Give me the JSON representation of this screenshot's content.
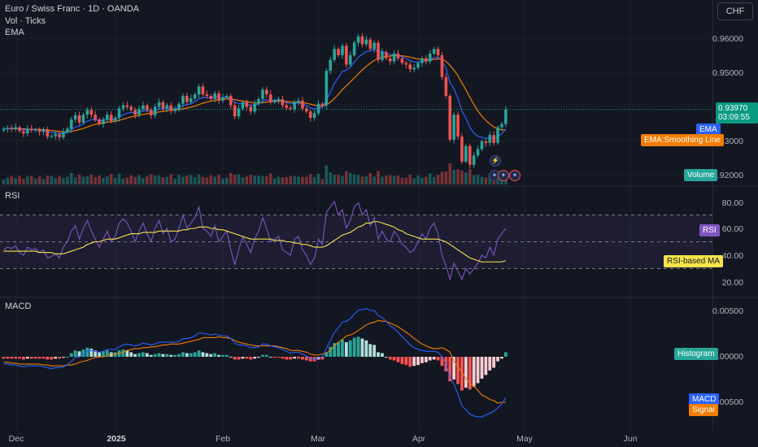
{
  "header": {
    "symbol_title": "Euro / Swiss Franc · 1D · OANDA",
    "volume_label": "Vol · Ticks",
    "ema_label": "EMA",
    "currency_button": "CHF"
  },
  "price_tag": {
    "price": "0.93970",
    "countdown": "03:09:55"
  },
  "legend_tags": {
    "ema": "EMA",
    "ema_smoothing": "EMA:Smoothing Line",
    "volume": "Volume",
    "rsi": "RSI",
    "rsi_ma": "RSI-based MA",
    "histogram": "Histogram",
    "macd": "MACD",
    "signal": "Signal"
  },
  "panes": {
    "rsi_title": "RSI",
    "macd_title": "MACD"
  },
  "colors": {
    "background": "#131722",
    "up": "#26a69a",
    "down": "#ef5350",
    "ema": "#2962ff",
    "ema_smoothing": "#f57c00",
    "rsi_line": "#7e57c2",
    "rsi_ma": "#f7e34a",
    "macd": "#2962ff",
    "signal": "#f57c00",
    "hist_up_strong": "#26a69a",
    "hist_up_weak": "#b2dfdb",
    "hist_down_strong": "#ff5252",
    "hist_down_weak": "#ffcdd2"
  },
  "chart_data": [
    {
      "type": "candlestick",
      "title": "Euro / Swiss Franc · 1D · OANDA",
      "y_ticks": [
        "0.96000",
        "0.95000",
        "0.93000",
        "0.92000"
      ],
      "ylim": [
        0.9165,
        0.9715
      ],
      "x_ticks": [
        "Dec",
        "2025",
        "Feb",
        "Mar",
        "Apr",
        "May",
        "Jun"
      ],
      "last_price": 0.9397,
      "closes": [
        0.9335,
        0.9338,
        0.9335,
        0.934,
        0.9328,
        0.932,
        0.9335,
        0.933,
        0.9332,
        0.9325,
        0.933,
        0.931,
        0.9312,
        0.9318,
        0.9308,
        0.9325,
        0.9335,
        0.9365,
        0.9378,
        0.9355,
        0.938,
        0.9395,
        0.938,
        0.9365,
        0.935,
        0.9365,
        0.938,
        0.936,
        0.937,
        0.94,
        0.941,
        0.9405,
        0.9395,
        0.938,
        0.9398,
        0.941,
        0.9395,
        0.9378,
        0.9405,
        0.942,
        0.94,
        0.941,
        0.9392,
        0.9395,
        0.9415,
        0.944,
        0.942,
        0.9432,
        0.9445,
        0.947,
        0.9445,
        0.944,
        0.943,
        0.9448,
        0.9425,
        0.9435,
        0.944,
        0.941,
        0.9375,
        0.94,
        0.942,
        0.9405,
        0.939,
        0.9415,
        0.943,
        0.946,
        0.9445,
        0.942,
        0.9425,
        0.943,
        0.941,
        0.9402,
        0.9398,
        0.942,
        0.9425,
        0.94,
        0.939,
        0.937,
        0.9385,
        0.9415,
        0.941,
        0.952,
        0.9555,
        0.959,
        0.957,
        0.96,
        0.954,
        0.957,
        0.961,
        0.963,
        0.9605,
        0.962,
        0.959,
        0.961,
        0.9555,
        0.958,
        0.956,
        0.955,
        0.9575,
        0.956,
        0.9545,
        0.954,
        0.9525,
        0.953,
        0.9545,
        0.956,
        0.955,
        0.9575,
        0.959,
        0.957,
        0.95,
        0.944,
        0.93,
        0.938,
        0.931,
        0.923,
        0.928,
        0.922,
        0.925,
        0.927,
        0.9295,
        0.929,
        0.9315,
        0.929,
        0.934,
        0.935,
        0.9397
      ],
      "volume_label": "Volume"
    },
    {
      "type": "line",
      "title": "RSI",
      "y_ticks": [
        "80.00",
        "60.00",
        "40.00",
        "20.00"
      ],
      "ylim": [
        17,
        87
      ],
      "band": [
        30,
        70
      ],
      "series": [
        {
          "name": "RSI",
          "values": [
            44,
            46,
            45,
            47,
            42,
            40,
            46,
            44,
            45,
            42,
            44,
            38,
            39,
            41,
            38,
            46,
            50,
            58,
            62,
            52,
            60,
            66,
            58,
            52,
            46,
            52,
            58,
            50,
            54,
            64,
            67,
            64,
            58,
            50,
            58,
            64,
            56,
            50,
            60,
            66,
            56,
            60,
            50,
            52,
            60,
            70,
            60,
            64,
            68,
            76,
            60,
            58,
            54,
            62,
            50,
            54,
            58,
            44,
            33,
            44,
            54,
            48,
            42,
            52,
            58,
            68,
            60,
            50,
            52,
            54,
            44,
            42,
            40,
            52,
            54,
            44,
            40,
            33,
            38,
            52,
            48,
            72,
            76,
            80,
            70,
            74,
            60,
            66,
            76,
            79,
            70,
            74,
            62,
            68,
            52,
            58,
            52,
            50,
            58,
            54,
            48,
            46,
            42,
            44,
            50,
            56,
            52,
            60,
            64,
            56,
            40,
            32,
            22,
            34,
            28,
            22,
            30,
            26,
            30,
            34,
            40,
            38,
            46,
            40,
            52,
            56,
            60
          ]
        },
        {
          "name": "RSI-based MA",
          "values": [
            43,
            43,
            43,
            43,
            43,
            43,
            43,
            43,
            43,
            42,
            42,
            42,
            42,
            41,
            41,
            41,
            42,
            43,
            44,
            45,
            46,
            48,
            49,
            50,
            50,
            51,
            52,
            52,
            52,
            53,
            54,
            55,
            56,
            56,
            56,
            57,
            57,
            57,
            57,
            58,
            58,
            58,
            58,
            58,
            58,
            59,
            59,
            60,
            60,
            61,
            61,
            61,
            60,
            60,
            59,
            59,
            58,
            57,
            56,
            55,
            54,
            53,
            52,
            52,
            52,
            52,
            52,
            52,
            51,
            51,
            51,
            50,
            50,
            49,
            49,
            48,
            48,
            47,
            46,
            46,
            46,
            47,
            49,
            51,
            53,
            55,
            56,
            57,
            59,
            61,
            62,
            64,
            64,
            65,
            65,
            64,
            63,
            62,
            61,
            59,
            58,
            56,
            55,
            54,
            53,
            52,
            52,
            52,
            52,
            52,
            51,
            50,
            48,
            46,
            44,
            42,
            40,
            38,
            37,
            36,
            35,
            35,
            35,
            35,
            35,
            35,
            36
          ]
        }
      ]
    },
    {
      "type": "bar+line",
      "title": "MACD",
      "y_ticks": [
        "0.00500",
        "0.00000",
        "-0.00500"
      ],
      "ylim": [
        -0.0069,
        0.0058
      ],
      "series": [
        {
          "name": "Histogram",
          "values": [
            -0.0002,
            -0.0002,
            -0.0002,
            -0.0002,
            -0.0002,
            -0.0003,
            -0.0002,
            -0.0002,
            -0.0002,
            -0.0002,
            -0.0002,
            -0.0003,
            -0.0003,
            -0.0002,
            -0.0002,
            -0.0001,
            0.0,
            0.0004,
            0.0007,
            0.0006,
            0.0008,
            0.001,
            0.0009,
            0.0007,
            0.0005,
            0.0006,
            0.0007,
            0.0005,
            0.0005,
            0.0007,
            0.0008,
            0.0007,
            0.0005,
            0.0003,
            0.0004,
            0.0005,
            0.0004,
            0.0002,
            0.0003,
            0.0004,
            0.0003,
            0.0003,
            0.0002,
            0.0002,
            0.0003,
            0.0005,
            0.0004,
            0.0004,
            0.0005,
            0.0007,
            0.0005,
            0.0004,
            0.0003,
            0.0004,
            0.0002,
            0.0002,
            0.0002,
            0.0,
            -0.0003,
            -0.0003,
            -0.0002,
            -0.0002,
            -0.0003,
            -0.0002,
            -0.0001,
            0.0002,
            0.0002,
            0.0,
            -0.0001,
            -0.0001,
            -0.0002,
            -0.0003,
            -0.0003,
            -0.0002,
            -0.0002,
            -0.0003,
            -0.0004,
            -0.0005,
            -0.0005,
            -0.0003,
            -0.0003,
            0.0005,
            0.0011,
            0.0015,
            0.0016,
            0.0019,
            0.0016,
            0.0018,
            0.0021,
            0.0022,
            0.002,
            0.0018,
            0.0014,
            0.0013,
            0.0005,
            0.0004,
            0.0,
            -0.0003,
            -0.0004,
            -0.0006,
            -0.0008,
            -0.0009,
            -0.0011,
            -0.001,
            -0.0009,
            -0.0007,
            -0.0006,
            -0.0004,
            -0.0003,
            -0.0004,
            -0.001,
            -0.0016,
            -0.0027,
            -0.0025,
            -0.003,
            -0.0037,
            -0.0034,
            -0.0036,
            -0.0033,
            -0.0029,
            -0.0024,
            -0.002,
            -0.0015,
            -0.0012,
            -0.0005,
            -0.0002,
            0.0005
          ]
        },
        {
          "name": "MACD",
          "values": [
            -0.0008,
            -0.0008,
            -0.0009,
            -0.0009,
            -0.001,
            -0.0011,
            -0.001,
            -0.001,
            -0.001,
            -0.001,
            -0.0011,
            -0.0012,
            -0.0013,
            -0.0012,
            -0.0012,
            -0.0011,
            -0.0009,
            -0.0005,
            -0.0001,
            0.0,
            0.0003,
            0.0006,
            0.0007,
            0.0006,
            0.0005,
            0.0006,
            0.0008,
            0.0008,
            0.0008,
            0.0011,
            0.0013,
            0.0014,
            0.0013,
            0.0012,
            0.0013,
            0.0015,
            0.0014,
            0.0013,
            0.0014,
            0.0016,
            0.0016,
            0.0016,
            0.0016,
            0.0016,
            0.0017,
            0.002,
            0.002,
            0.0021,
            0.0023,
            0.0026,
            0.0026,
            0.0025,
            0.0024,
            0.0025,
            0.0024,
            0.0023,
            0.0023,
            0.002,
            0.0015,
            0.0013,
            0.0013,
            0.0012,
            0.001,
            0.001,
            0.0011,
            0.0014,
            0.0014,
            0.0012,
            0.0011,
            0.001,
            0.0008,
            0.0006,
            0.0004,
            0.0005,
            0.0005,
            0.0003,
            0.0001,
            -0.0002,
            -0.0003,
            -0.0001,
            0.0,
            0.0009,
            0.0018,
            0.0027,
            0.0032,
            0.0038,
            0.0039,
            0.0042,
            0.0047,
            0.0051,
            0.0052,
            0.0053,
            0.0051,
            0.0051,
            0.0045,
            0.0043,
            0.0039,
            0.0034,
            0.0031,
            0.0027,
            0.0022,
            0.0018,
            0.0013,
            0.001,
            0.0008,
            0.0007,
            0.0006,
            0.0006,
            0.0006,
            0.0005,
            0.0,
            -0.0008,
            -0.0022,
            -0.003,
            -0.0041,
            -0.0054,
            -0.0058,
            -0.0063,
            -0.0065,
            -0.0066,
            -0.0066,
            -0.0064,
            -0.0062,
            -0.006,
            -0.0056,
            -0.0052,
            -0.0045
          ]
        },
        {
          "name": "Signal",
          "values": [
            -0.0006,
            -0.0006,
            -0.0007,
            -0.0007,
            -0.0008,
            -0.0008,
            -0.0008,
            -0.0008,
            -0.0008,
            -0.0008,
            -0.0009,
            -0.0009,
            -0.001,
            -0.001,
            -0.001,
            -0.001,
            -0.0009,
            -0.0009,
            -0.0008,
            -0.0006,
            -0.0005,
            -0.0004,
            -0.0002,
            -0.0001,
            0.0,
            0.0,
            0.0001,
            0.0003,
            0.0003,
            0.0004,
            0.0005,
            0.0007,
            0.0008,
            0.0009,
            0.0009,
            0.001,
            0.001,
            0.0011,
            0.0011,
            0.0012,
            0.0013,
            0.0013,
            0.0014,
            0.0014,
            0.0014,
            0.0015,
            0.0016,
            0.0017,
            0.0018,
            0.0019,
            0.0021,
            0.0021,
            0.0021,
            0.0021,
            0.0022,
            0.0021,
            0.0021,
            0.002,
            0.0018,
            0.0016,
            0.0015,
            0.0014,
            0.0013,
            0.0012,
            0.0012,
            0.0012,
            0.0012,
            0.0012,
            0.0012,
            0.0011,
            0.001,
            0.0009,
            0.0007,
            0.0007,
            0.0007,
            0.0006,
            0.0005,
            0.0003,
            0.0002,
            0.0002,
            0.0003,
            0.0004,
            0.0007,
            0.0012,
            0.0016,
            0.0019,
            0.0023,
            0.0024,
            0.0026,
            0.0029,
            0.0032,
            0.0035,
            0.0037,
            0.0038,
            0.004,
            0.0039,
            0.0039,
            0.0037,
            0.0035,
            0.0033,
            0.003,
            0.0027,
            0.0024,
            0.002,
            0.0017,
            0.0014,
            0.0012,
            0.001,
            0.0009,
            0.0009,
            0.001,
            0.0008,
            0.0005,
            -0.0005,
            -0.0011,
            -0.0017,
            -0.0024,
            -0.0029,
            -0.0032,
            -0.0037,
            -0.0042,
            -0.0044,
            -0.0047,
            -0.0048,
            -0.0051,
            -0.005,
            -0.005
          ]
        }
      ]
    }
  ]
}
